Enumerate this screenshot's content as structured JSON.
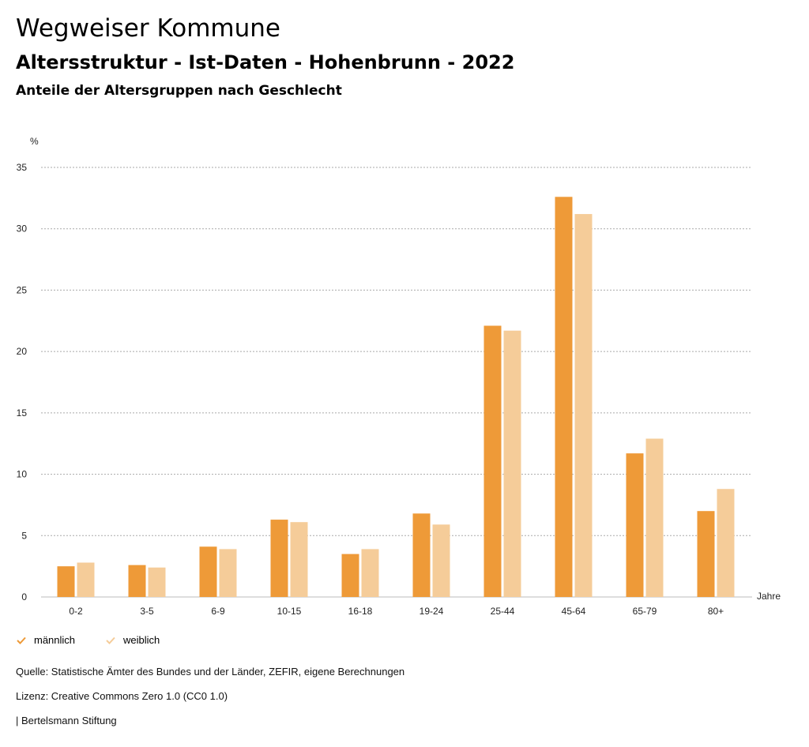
{
  "header": {
    "title": "Wegweiser Kommune",
    "subtitle": "Altersstruktur - Ist-Daten - Hohenbrunn - 2022",
    "chart_heading": "Anteile der Altersgruppen nach Geschlecht"
  },
  "chart_data": {
    "type": "bar",
    "title": "Wegweiser Kommune",
    "subtitle": "Altersstruktur - Ist-Daten - Hohenbrunn - 2022",
    "xlabel": "Jahre",
    "ylabel": "%",
    "ylim": [
      0,
      35
    ],
    "yticks": [
      0,
      5,
      10,
      15,
      20,
      25,
      30,
      35
    ],
    "grid": true,
    "legend_position": "bottom-left",
    "categories": [
      "0-2",
      "3-5",
      "6-9",
      "10-15",
      "16-18",
      "19-24",
      "25-44",
      "45-64",
      "65-79",
      "80+"
    ],
    "series": [
      {
        "name": "männlich",
        "color": "#ee9a38",
        "values": [
          2.5,
          2.6,
          4.1,
          6.3,
          3.5,
          6.8,
          22.1,
          32.6,
          11.7,
          7.0
        ]
      },
      {
        "name": "weiblich",
        "color": "#f5cc99",
        "values": [
          2.8,
          2.4,
          3.9,
          6.1,
          3.9,
          5.9,
          21.7,
          31.2,
          12.9,
          8.8
        ]
      }
    ]
  },
  "footer": {
    "source": "Quelle: Statistische Ämter des Bundes und der Länder, ZEFIR, eigene Berechnungen",
    "license": "Lizenz: Creative Commons Zero 1.0 (CC0 1.0)",
    "publisher": "| Bertelsmann Stiftung"
  }
}
